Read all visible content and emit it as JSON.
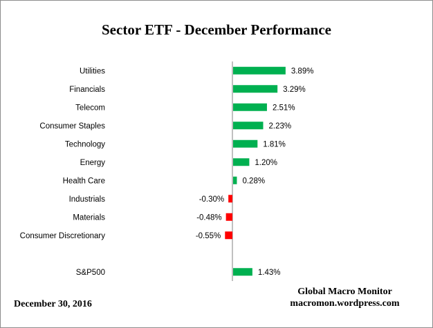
{
  "colors": {
    "positive": "#00b050",
    "negative": "#ff0000",
    "axis": "#808080"
  },
  "chart_data": {
    "type": "bar",
    "orientation": "horizontal",
    "title": "Sector ETF - December Performance",
    "categories": [
      "Utilities",
      "Financials",
      "Telecom",
      "Consumer Staples",
      "Technology",
      "Energy",
      "Health Care",
      "Industrials",
      "Materials",
      "Consumer Discretionary",
      "",
      "S&P500"
    ],
    "values": [
      3.89,
      3.29,
      2.51,
      2.23,
      1.81,
      1.2,
      0.28,
      -0.3,
      -0.48,
      -0.55,
      null,
      1.43
    ],
    "value_labels": [
      "3.89%",
      "3.29%",
      "2.51%",
      "2.23%",
      "1.81%",
      "1.20%",
      "0.28%",
      "-0.30%",
      "-0.48%",
      "-0.55%",
      "",
      "1.43%"
    ],
    "legend": "none",
    "grid": false
  },
  "footer": {
    "source_name": "Global Macro Monitor",
    "source_url": "macromon.wordpress.com",
    "date": "December  30, 2016"
  }
}
